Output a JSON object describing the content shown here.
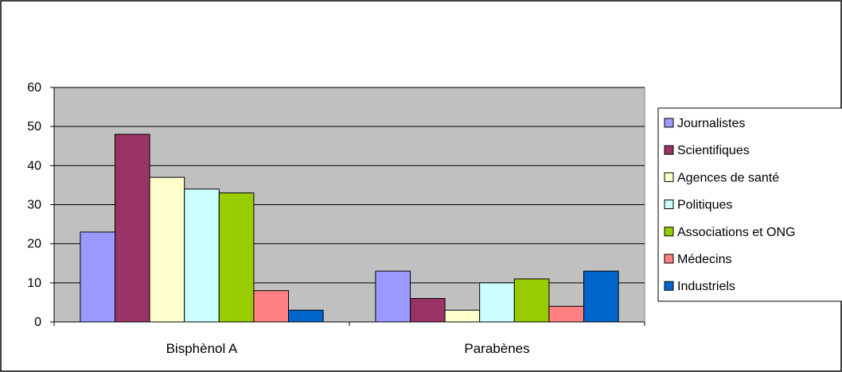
{
  "chart_data": {
    "type": "bar",
    "categories": [
      "Bisphènol A",
      "Parabènes"
    ],
    "series": [
      {
        "name": "Journalistes",
        "color": "#9999ff",
        "values": [
          23,
          13
        ]
      },
      {
        "name": "Scientifiques",
        "color": "#993366",
        "values": [
          48,
          6
        ]
      },
      {
        "name": "Agences de santé",
        "color": "#ffffcc",
        "values": [
          37,
          3
        ]
      },
      {
        "name": "Politiques",
        "color": "#ccffff",
        "values": [
          34,
          10
        ]
      },
      {
        "name": "Associations et ONG",
        "color": "#99cc00",
        "values": [
          33,
          11
        ]
      },
      {
        "name": "Médecins",
        "color": "#ff8080",
        "values": [
          8,
          4
        ]
      },
      {
        "name": "Industriels",
        "color": "#0066cc",
        "values": [
          3,
          13
        ]
      }
    ],
    "ylim": [
      0,
      60
    ],
    "yticks": [
      "0",
      "10",
      "20",
      "30",
      "40",
      "50",
      "60"
    ],
    "grid": true,
    "plot_background": "#c0c0c0",
    "legend": "right"
  }
}
